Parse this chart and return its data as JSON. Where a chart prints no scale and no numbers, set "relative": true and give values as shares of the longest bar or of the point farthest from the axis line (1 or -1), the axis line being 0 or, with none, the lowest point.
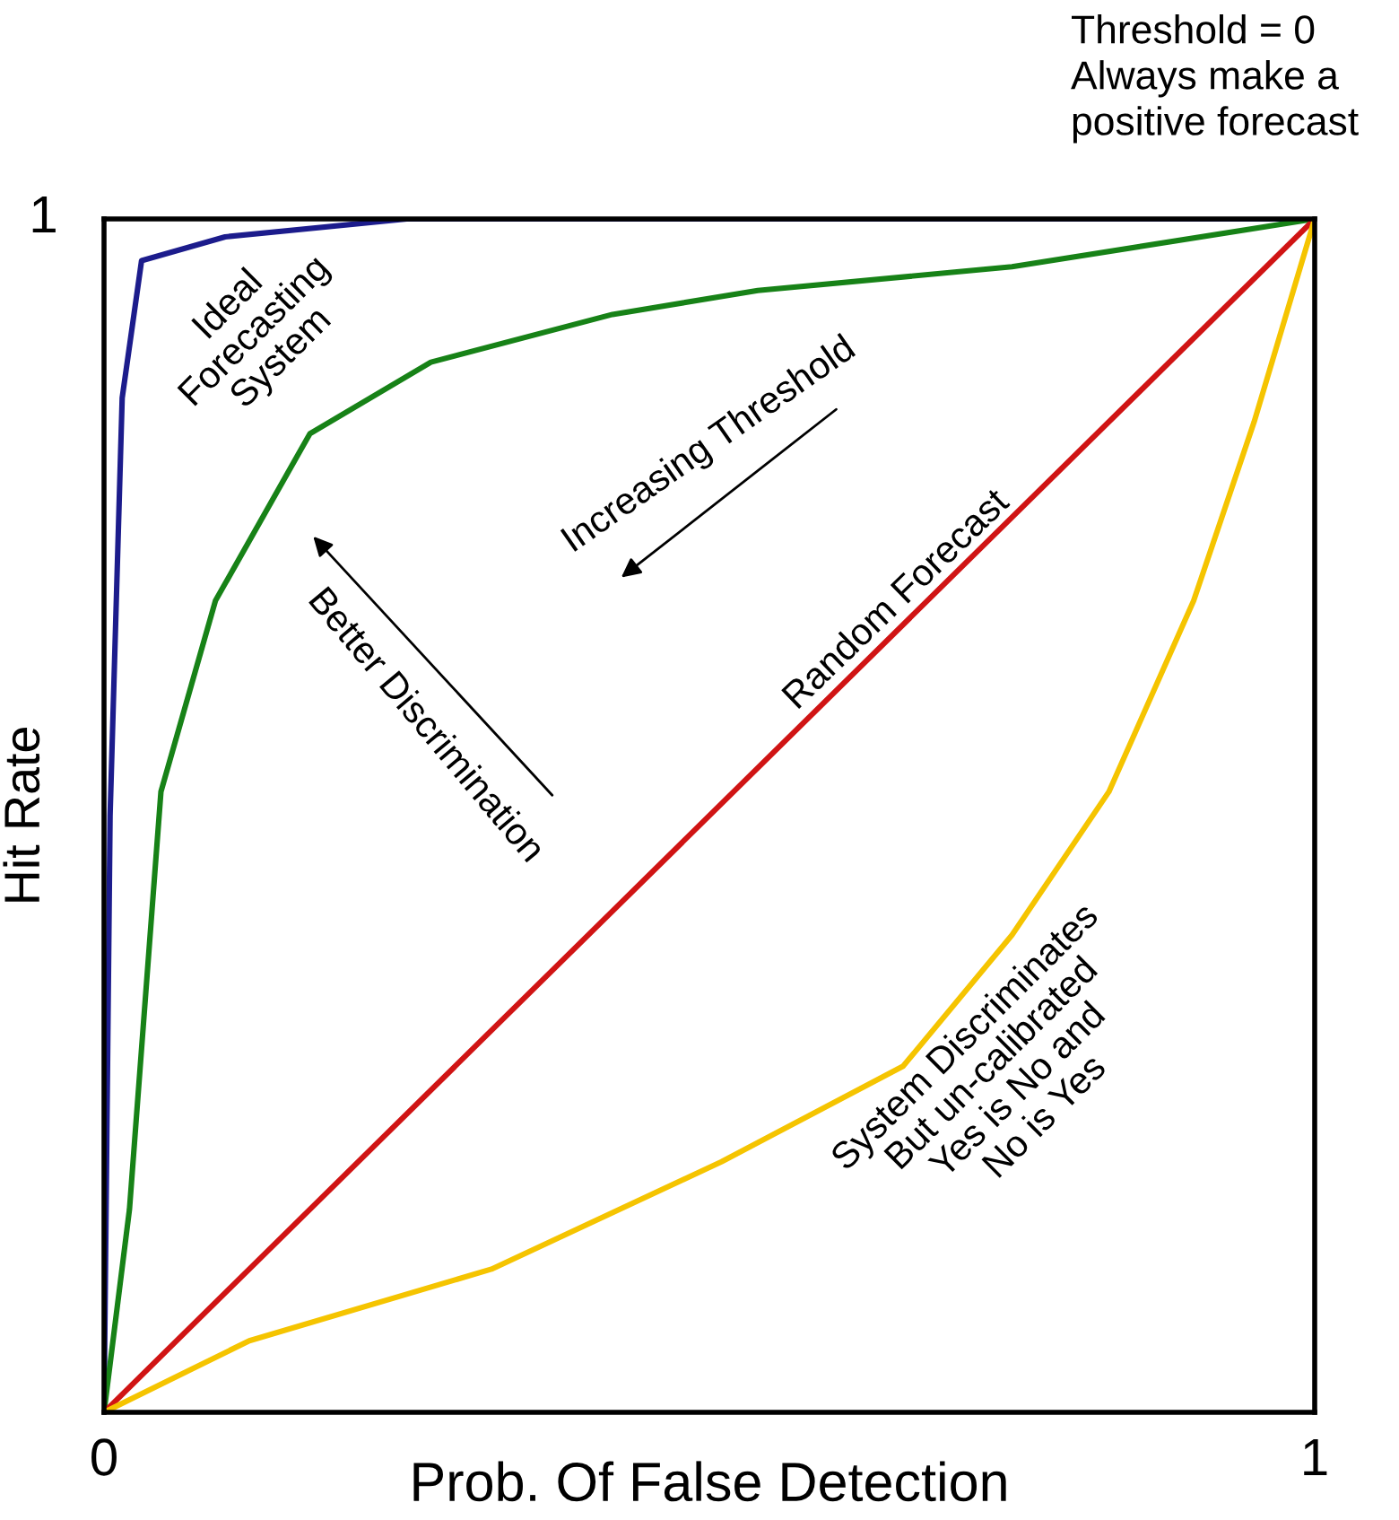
{
  "chart_data": {
    "type": "line",
    "xlabel": "Prob. Of False Detection",
    "ylabel": "Hit Rate",
    "xlim": [
      0,
      1
    ],
    "xticks": [
      0,
      1
    ],
    "relative": true,
    "series": [
      {
        "color": "#1c1c8c",
        "x": [
          0,
          0.005,
          0.015,
          0.031,
          0.1,
          0.25,
          1
        ],
        "values": [
          0,
          0.5,
          0.85,
          0.965,
          0.985,
          1,
          1
        ]
      },
      {
        "color": "#178217",
        "x": [
          0,
          0.021,
          0.047,
          0.092,
          0.17,
          0.27,
          0.42,
          0.54,
          0.75,
          1
        ],
        "values": [
          0,
          0.17,
          0.52,
          0.68,
          0.82,
          0.88,
          0.92,
          0.94,
          0.96,
          1
        ]
      },
      {
        "color": "#d01414",
        "x": [
          0,
          1
        ],
        "values": [
          0,
          1
        ]
      },
      {
        "color": "#f5c400",
        "x": [
          0,
          0.12,
          0.32,
          0.51,
          0.66,
          0.75,
          0.83,
          0.9,
          0.95,
          1
        ],
        "values": [
          0,
          0.06,
          0.12,
          0.21,
          0.29,
          0.4,
          0.52,
          0.68,
          0.83,
          1
        ]
      }
    ],
    "annotations": [
      "Ideal\nForecasting\nSystem",
      "Increasing Threshold",
      "Better Discrimination",
      "Random Forecast",
      "System Discriminates\nBut un-calibrated\nYes is No and\nNo is Yes",
      "Threshold = 0\nAlways make a\npositive forecast",
      "1"
    ]
  }
}
